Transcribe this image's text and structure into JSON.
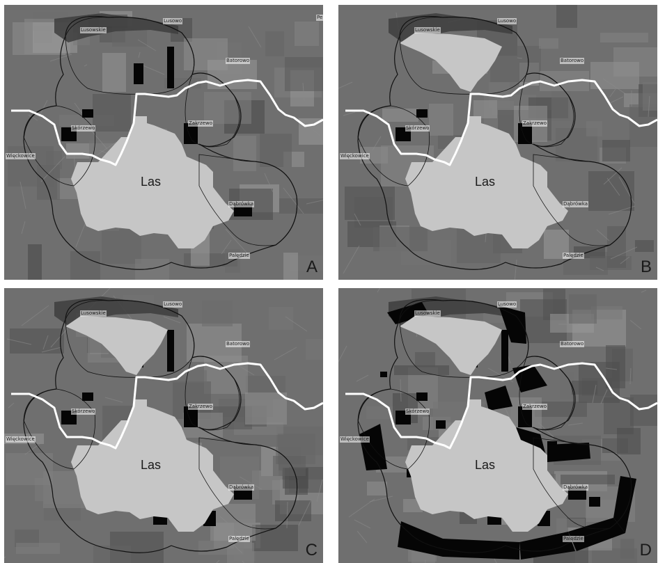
{
  "towns": {
    "lusowo": "Lusowo",
    "lusowskie": "Lusowskie",
    "batorowo": "Batorowo",
    "zakrzewo": "Zakrzewo",
    "skorzewo": "Skórzewo",
    "wieckowice": "Więckowice",
    "dabrowka": "Dąbrówka",
    "paledzie": "Palędzie",
    "edge": "Pe"
  },
  "forest_label": "Las",
  "panels": [
    {
      "id": "A",
      "label": "A",
      "dark_fill_level": 0.25
    },
    {
      "id": "B",
      "label": "B",
      "dark_fill_level": 0.1
    },
    {
      "id": "C",
      "label": "C",
      "dark_fill_level": 0.35
    },
    {
      "id": "D",
      "label": "D",
      "dark_fill_level": 0.6
    }
  ],
  "colors": {
    "background": "#6f6f6f",
    "forest": "#c6c6c6",
    "boundary_line": "#ffffff",
    "buffer_outline": "#111111",
    "dark_patch": "#050505",
    "lake": "#3e3e3e"
  }
}
